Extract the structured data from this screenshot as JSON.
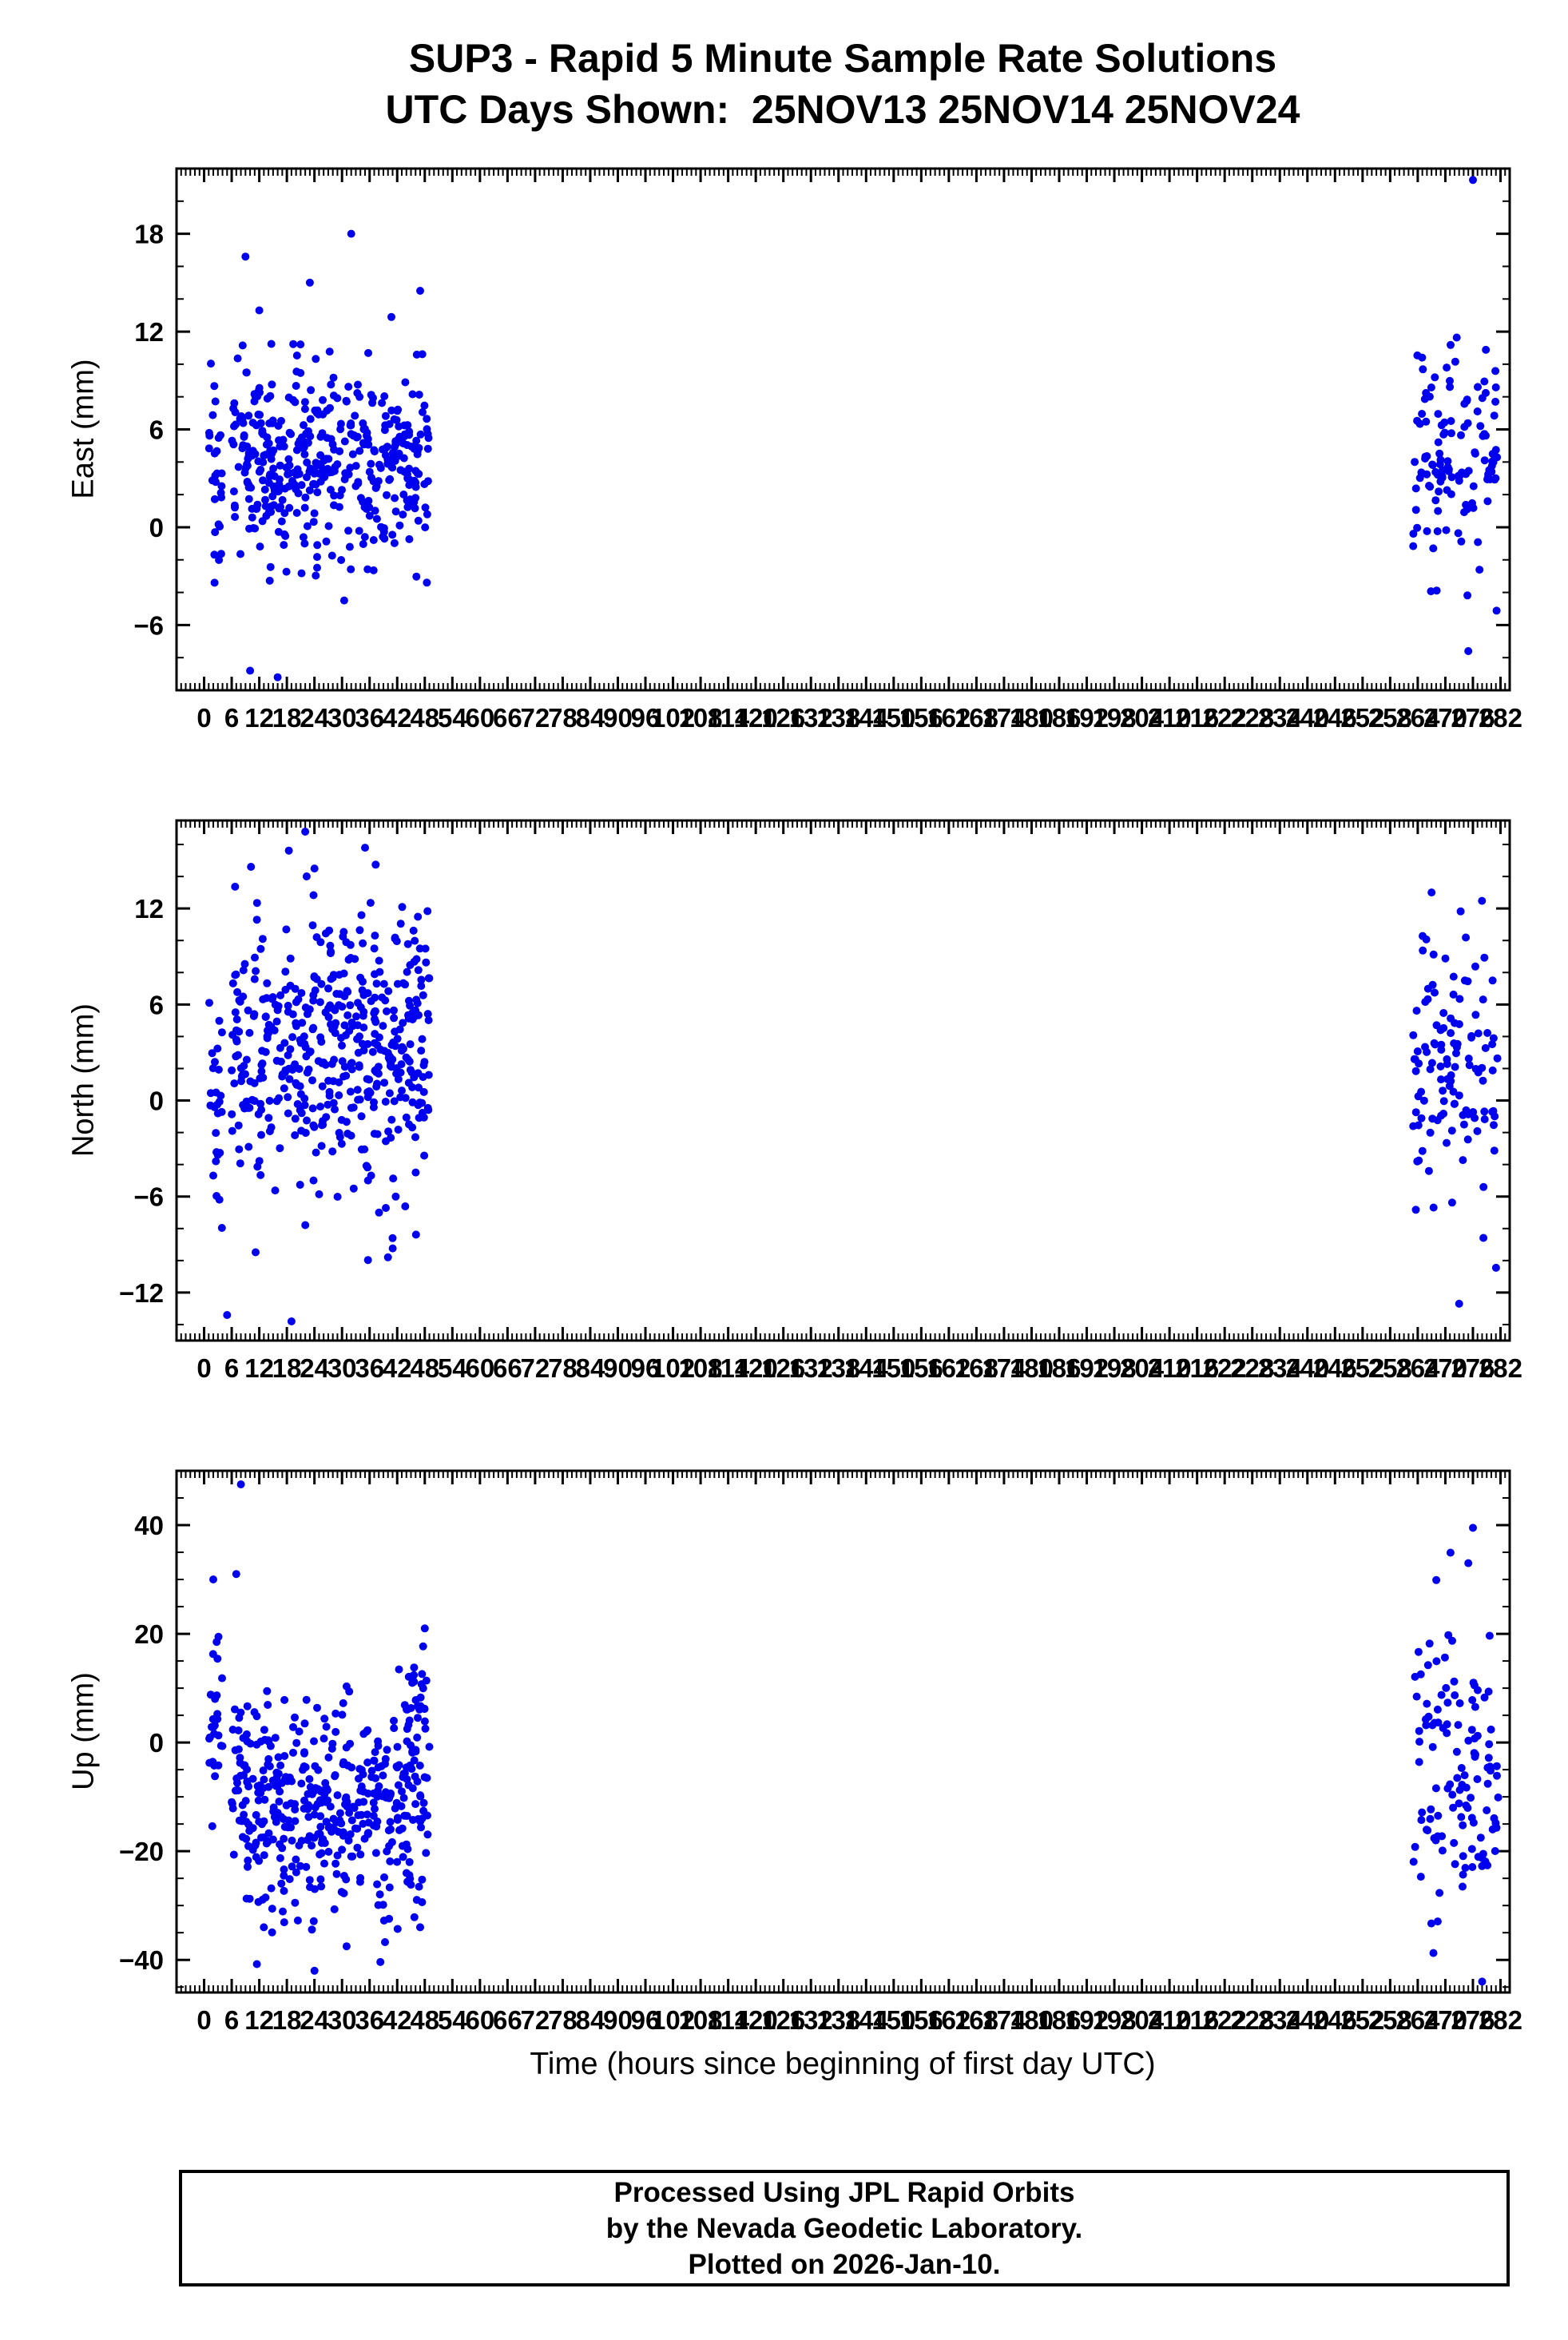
{
  "footer": {
    "line1": "Processed Using JPL Rapid Orbits",
    "line2": "by the Nevada Geodetic Laboratory.",
    "line3": "Plotted on 2026-Jan-10."
  },
  "chart_data": {
    "type": "scatter",
    "title": "SUP3 - Rapid 5 Minute Sample Rate Solutions",
    "subtitle": "UTC Days Shown:  25NOV13 25NOV14 25NOV24",
    "xlabel": "Time (hours since beginning of first day UTC)",
    "marker_color": "#0000EE",
    "frame_color": "#000000",
    "grid": false,
    "legend": "none",
    "xlim": [
      -6,
      284
    ],
    "x_major_ticks": [
      0,
      6,
      12,
      18,
      24,
      30,
      36,
      42,
      48,
      54,
      60,
      66,
      72,
      78,
      84,
      90,
      96,
      102,
      108,
      114,
      120,
      126,
      132,
      138,
      144,
      150,
      156,
      162,
      168,
      174,
      180,
      186,
      192,
      198,
      204,
      210,
      216,
      222,
      228,
      234,
      240,
      246,
      252,
      258,
      264,
      270,
      276,
      282
    ],
    "x_minor_step": 1,
    "panels": [
      {
        "name": "east",
        "ylabel": "East (mm)",
        "ylim": [
          -10,
          22
        ],
        "yticks": [
          -6,
          0,
          6,
          12,
          18
        ],
        "y_minor_step": 2,
        "clusters": [
          {
            "x0": 1,
            "x1": 4,
            "n": 28,
            "mean": 2.5,
            "std": 3.5,
            "min": -5,
            "max": 12.5
          },
          {
            "x0": 6,
            "x1": 49,
            "n": 430,
            "mean": 4.0,
            "std": 3.0,
            "min": -9,
            "max": 18
          },
          {
            "x0": 263,
            "x1": 281.5,
            "n": 125,
            "mean": 4.5,
            "std": 3.2,
            "min": -8.5,
            "max": 21
          }
        ],
        "extra_points": [
          [
            32,
            18
          ],
          [
            9,
            16.6
          ],
          [
            23,
            15
          ],
          [
            47,
            14.5
          ],
          [
            12,
            13.3
          ],
          [
            276,
            21.3
          ],
          [
            275,
            -7.6
          ],
          [
            10,
            -8.8
          ],
          [
            16,
            -9.2
          ]
        ]
      },
      {
        "name": "north",
        "ylabel": "North (mm)",
        "ylim": [
          -15,
          17.5
        ],
        "yticks": [
          -12,
          -6,
          0,
          6,
          12
        ],
        "y_minor_step": 2,
        "clusters": [
          {
            "x0": 1,
            "x1": 4,
            "n": 26,
            "mean": 0.0,
            "std": 4.0,
            "min": -8.5,
            "max": 7
          },
          {
            "x0": 6,
            "x1": 49,
            "n": 430,
            "mean": 3.0,
            "std": 4.2,
            "min": -13.5,
            "max": 16
          },
          {
            "x0": 22,
            "x1": 38,
            "n": 40,
            "mean": 8.0,
            "std": 3.5,
            "min": 2,
            "max": 16
          },
          {
            "x0": 263,
            "x1": 281.5,
            "n": 120,
            "mean": 2.5,
            "std": 4.5,
            "min": -12.5,
            "max": 13
          }
        ],
        "extra_points": [
          [
            22,
            16.8
          ],
          [
            35,
            15.8
          ],
          [
            24,
            14.5
          ],
          [
            5,
            -13.4
          ],
          [
            19,
            -13.8
          ],
          [
            267,
            13
          ],
          [
            273,
            -12.7
          ],
          [
            41,
            -8.6
          ],
          [
            40,
            -9.8
          ]
        ]
      },
      {
        "name": "up",
        "ylabel": "Up (mm)",
        "ylim": [
          -46,
          50
        ],
        "yticks": [
          -40,
          -20,
          0,
          20,
          40
        ],
        "y_minor_step": 5,
        "clusters": [
          {
            "x0": 1,
            "x1": 4,
            "n": 26,
            "mean": 3,
            "std": 10,
            "min": -17,
            "max": 30
          },
          {
            "x0": 6,
            "x1": 49,
            "n": 430,
            "mean": -11,
            "std": 9,
            "min": -43,
            "max": 47
          },
          {
            "x0": 44,
            "x1": 48.5,
            "n": 30,
            "mean": 8,
            "std": 6,
            "min": -5,
            "max": 21
          },
          {
            "x0": 263,
            "x1": 281.5,
            "n": 120,
            "mean": -5,
            "std": 15,
            "min": -42,
            "max": 39
          }
        ],
        "extra_points": [
          [
            8,
            47.5
          ],
          [
            7,
            31
          ],
          [
            48,
            21
          ],
          [
            2,
            30
          ],
          [
            276,
            39.5
          ],
          [
            275,
            33
          ],
          [
            24,
            -42
          ],
          [
            278,
            -44
          ],
          [
            47,
            -34
          ],
          [
            13,
            -34
          ],
          [
            31,
            -37.5
          ]
        ]
      }
    ]
  }
}
